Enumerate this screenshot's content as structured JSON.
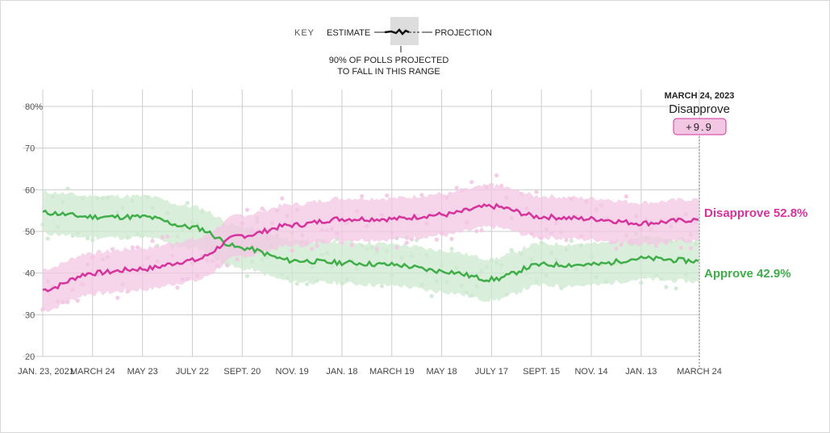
{
  "key": {
    "label": "KEY",
    "estimate": "ESTIMATE",
    "projection": "PROJECTION",
    "range_note_line1": "90% OF POLLS PROJECTED",
    "range_note_line2": "TO FALL IN THIS RANGE"
  },
  "tooltip": {
    "date": "MARCH 24, 2023",
    "leader": "Disapprove",
    "margin": "+9.9"
  },
  "colors": {
    "approve": "#3fae49",
    "disapprove": "#d6339c",
    "approve_light": "#cde9cf",
    "disapprove_light": "#f3c6e3"
  },
  "chart_data": {
    "type": "line",
    "title": "",
    "xlabel": "",
    "ylabel": "",
    "ylim": [
      20,
      80
    ],
    "yticks": [
      "80%",
      "70",
      "60",
      "50",
      "40",
      "30",
      "20"
    ],
    "ytick_values": [
      80,
      70,
      60,
      50,
      40,
      30,
      20
    ],
    "xtick_labels": [
      "JAN. 23, 2021",
      "MARCH 24",
      "MAY 23",
      "JULY 22",
      "SEPT. 20",
      "NOV. 19",
      "JAN. 18",
      "MARCH 19",
      "MAY 18",
      "JULY 17",
      "SEPT. 15",
      "NOV. 14",
      "JAN. 13",
      "MARCH 24"
    ],
    "x_days": [
      0,
      60,
      120,
      180,
      240,
      300,
      360,
      420,
      480,
      540,
      600,
      660,
      720,
      790
    ],
    "grid": true,
    "series": [
      {
        "name": "Disapprove",
        "label": "Disapprove 52.8%",
        "values": [
          36,
          40,
          41,
          43,
          49,
          51.5,
          53,
          53,
          54,
          56,
          53.5,
          53,
          52,
          52.8
        ]
      },
      {
        "name": "Approve",
        "label": "Approve 42.9%",
        "values": [
          54.5,
          53.5,
          53.5,
          51,
          46,
          43,
          42.5,
          42,
          40.5,
          38.5,
          42,
          42,
          43.5,
          42.9
        ]
      }
    ]
  }
}
